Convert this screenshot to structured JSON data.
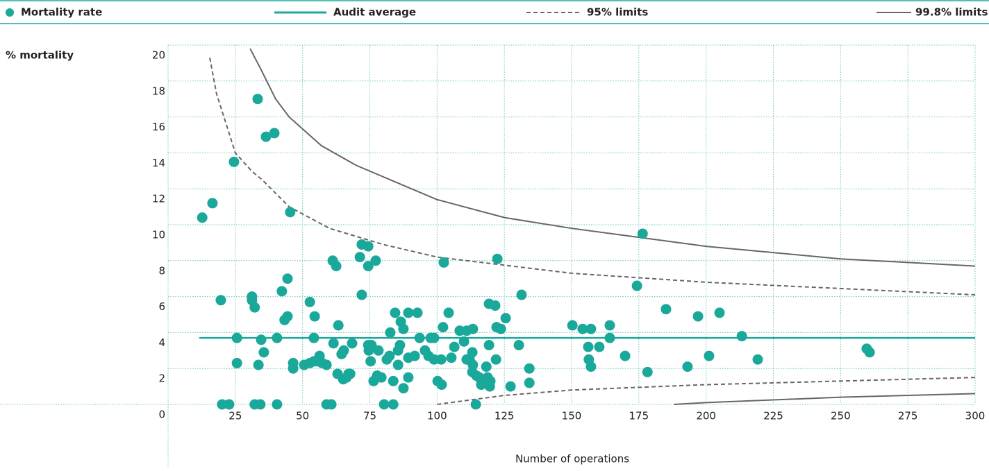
{
  "chart_data": {
    "type": "scatter",
    "y_label": "% mortality",
    "x_label": "Number of operations",
    "xlim": [
      0,
      300
    ],
    "ylim": [
      0,
      20
    ],
    "xticks": [
      25,
      50,
      75,
      100,
      125,
      150,
      175,
      200,
      225,
      250,
      275,
      300
    ],
    "yticks": [
      0,
      2,
      4,
      6,
      8,
      10,
      12,
      14,
      16,
      18,
      20
    ],
    "grid": true,
    "series": [
      {
        "name": "Mortality rate",
        "color": "#1aa89a",
        "marker": "circle",
        "x": [
          12.7,
          16.5,
          19.6,
          20.1,
          22.7,
          24.5,
          25.6,
          25.6,
          33.3,
          36.4,
          39.5,
          31.2,
          31.2,
          32.2,
          32.2,
          34.3,
          33.6,
          34.6,
          35.6,
          40.5,
          40.5,
          42.3,
          44.4,
          43.3,
          44.4,
          45.4,
          46.5,
          46.5,
          50.6,
          52.7,
          52.7,
          54.2,
          54.5,
          54.2,
          55.3,
          56.3,
          57.3,
          58.9,
          58.9,
          60.7,
          61.2,
          62.5,
          61.5,
          63.3,
          63.0,
          64.5,
          65.3,
          65.1,
          66.3,
          67.1,
          68.4,
          67.7,
          71.3,
          72.0,
          74.4,
          72.0,
          74.4,
          77.2,
          74.4,
          74.6,
          75.6,
          75.3,
          78.2,
          76.4,
          77.7,
          79.3,
          80.3,
          81.3,
          82.3,
          82.6,
          83.7,
          83.7,
          84.4,
          85.5,
          85.5,
          86.2,
          86.5,
          87.5,
          87.5,
          89.3,
          89.3,
          89.3,
          91.7,
          92.7,
          93.5,
          95.5,
          96.8,
          97.6,
          98.9,
          98.9,
          100.2,
          101.5,
          101.7,
          102.5,
          102.2,
          104.3,
          105.3,
          106.4,
          108.4,
          110.0,
          111.0,
          111.0,
          112.1,
          113.3,
          113.1,
          113.3,
          113.1,
          114.6,
          114.4,
          115.7,
          116.4,
          118.3,
          118.8,
          119.6,
          119.8,
          119.3,
          119.3,
          121.6,
          121.9,
          122.1,
          122.4,
          123.7,
          125.5,
          127.3,
          130.4,
          131.4,
          134.3,
          134.3,
          150.3,
          154.1,
          157.2,
          156.2,
          156.4,
          157.2,
          160.3,
          164.2,
          164.2,
          169.9,
          174.3,
          176.4,
          178.2,
          185.1,
          193.1,
          197.0,
          201.1,
          205.0,
          213.3,
          219.2,
          259.7,
          260.8
        ],
        "values": [
          10.4,
          11.2,
          5.8,
          0,
          0,
          13.5,
          3.7,
          2.3,
          17,
          14.9,
          15.1,
          6.0,
          5.8,
          5.4,
          0,
          0,
          2.2,
          3.6,
          2.9,
          3.7,
          0,
          6.3,
          7.0,
          4.7,
          4.9,
          10.7,
          2.3,
          2.0,
          2.2,
          5.7,
          2.3,
          3.7,
          4.9,
          2.4,
          2.4,
          2.7,
          2.3,
          2.2,
          0,
          0,
          8.0,
          7.7,
          3.4,
          4.4,
          1.7,
          2.8,
          3.0,
          1.4,
          1.5,
          1.7,
          3.4,
          1.7,
          8.2,
          8.9,
          8.8,
          6.1,
          7.7,
          8.0,
          3.3,
          3.0,
          3.3,
          2.4,
          3.0,
          1.3,
          1.6,
          1.5,
          0,
          2.5,
          2.7,
          4.0,
          1.3,
          0,
          5.1,
          3.0,
          2.2,
          3.3,
          4.6,
          4.2,
          0.9,
          5.1,
          1.5,
          2.6,
          2.7,
          5.1,
          3.7,
          3.0,
          2.7,
          3.7,
          2.5,
          3.7,
          1.3,
          2.5,
          1.1,
          7.9,
          4.3,
          5.1,
          2.6,
          3.2,
          4.1,
          3.5,
          4.1,
          2.5,
          2.5,
          4.2,
          2.9,
          2.2,
          1.8,
          1.6,
          0,
          1.5,
          1.1,
          2.1,
          1.5,
          1.0,
          1.3,
          3.3,
          5.6,
          5.5,
          2.5,
          4.3,
          8.1,
          4.2,
          4.8,
          1.0,
          3.3,
          6.1,
          2.0,
          1.2,
          4.4,
          4.2,
          4.2,
          3.2,
          2.5,
          2.1,
          3.2,
          4.4,
          3.7,
          2.7,
          6.6,
          9.5,
          1.8,
          5.3,
          2.1,
          4.9,
          2.7,
          5.1,
          3.8,
          2.5,
          3.1,
          2.9
        ]
      },
      {
        "name": "Audit average",
        "color": "#1aa89a",
        "style": "solid",
        "x": [
          11.6,
          300
        ],
        "values": [
          3.7,
          3.7
        ]
      },
      {
        "name": "95% limits",
        "color": "#666666",
        "style": "dashed",
        "curves": [
          {
            "x": [
              15.5,
              18,
              25,
              31,
              35,
              45,
              60,
              80,
              100,
              150,
              200,
              300
            ],
            "values": [
              19.3,
              17.3,
              14,
              13,
              12.5,
              11,
              9.8,
              8.9,
              8.2,
              7.3,
              6.8,
              6.1
            ]
          },
          {
            "x": [
              100,
              125,
              150,
              200,
              250,
              300
            ],
            "values": [
              0,
              0.5,
              0.8,
              1.1,
              1.3,
              1.5
            ]
          }
        ]
      },
      {
        "name": "99.8% limits",
        "color": "#666666",
        "style": "solid",
        "curves": [
          {
            "x": [
              30.5,
              34,
              40,
              45,
              57,
              70,
              100,
              125,
              150,
              200,
              250,
              300
            ],
            "values": [
              19.8,
              18.8,
              17,
              16,
              14.4,
              13.3,
              11.4,
              10.4,
              9.8,
              8.8,
              8.1,
              7.7
            ]
          },
          {
            "x": [
              188,
              200,
              250,
              300
            ],
            "values": [
              0,
              0.1,
              0.4,
              0.6
            ]
          }
        ]
      }
    ]
  }
}
